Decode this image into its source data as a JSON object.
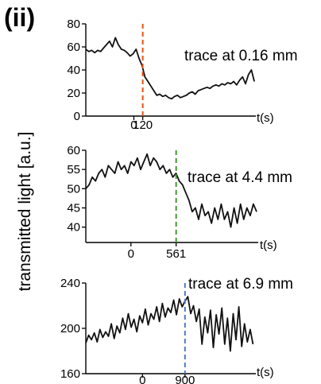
{
  "figure": {
    "panel_label": "(ii)",
    "shared_ylabel": "transmitted light [a.u.]"
  },
  "chart_data": [
    {
      "type": "line",
      "annotation": "trace at 0.16 mm",
      "xlabel": "t(s)",
      "ylim": [
        0,
        80
      ],
      "yticks": [
        0,
        20,
        40,
        60,
        80
      ],
      "xticks": [
        0,
        120
      ],
      "xlim": [
        -650,
        1650
      ],
      "marker": {
        "x": 120,
        "color": "#e2531a"
      },
      "series": [
        {
          "x": [
            -650,
            -610,
            -570,
            -530,
            -490,
            -450,
            -410,
            -370,
            -330,
            -290,
            -250,
            -210,
            -170,
            -130,
            -90,
            -50,
            -10,
            30,
            70,
            110,
            150,
            190,
            230,
            270,
            310,
            350,
            390,
            430,
            470,
            510,
            550,
            590,
            630,
            670,
            710,
            750,
            790,
            830,
            870,
            910,
            950,
            990,
            1030,
            1070,
            1110,
            1150,
            1190,
            1230,
            1270,
            1310,
            1350,
            1390,
            1430,
            1470,
            1510,
            1550,
            1590,
            1630
          ],
          "y": [
            58,
            56,
            57,
            55,
            57,
            56,
            59,
            62,
            65,
            60,
            68,
            62,
            58,
            57,
            55,
            52,
            54,
            58,
            50,
            44,
            34,
            30,
            26,
            22,
            18,
            19,
            17,
            18,
            16,
            15,
            17,
            18,
            16,
            17,
            18,
            20,
            21,
            19,
            22,
            23,
            24,
            25,
            24,
            26,
            27,
            26,
            28,
            27,
            29,
            28,
            30,
            27,
            31,
            34,
            28,
            36,
            40,
            30
          ]
        }
      ]
    },
    {
      "type": "line",
      "annotation": "trace at 4.4 mm",
      "xlabel": "t(s)",
      "ylim": [
        36,
        60
      ],
      "yticks": [
        40,
        45,
        50,
        55,
        60
      ],
      "xticks": [
        0,
        561
      ],
      "xlim": [
        -560,
        1580
      ],
      "marker": {
        "x": 561,
        "color": "#3e9a2b"
      },
      "series": [
        {
          "x": [
            -560,
            -520,
            -480,
            -440,
            -400,
            -360,
            -320,
            -280,
            -240,
            -200,
            -160,
            -120,
            -80,
            -40,
            0,
            40,
            80,
            120,
            160,
            200,
            240,
            280,
            320,
            360,
            400,
            440,
            480,
            520,
            560,
            600,
            640,
            680,
            720,
            760,
            800,
            840,
            880,
            920,
            960,
            1000,
            1040,
            1080,
            1120,
            1160,
            1200,
            1240,
            1280,
            1320,
            1360,
            1400,
            1440,
            1480,
            1520,
            1560
          ],
          "y": [
            50,
            51,
            53,
            52,
            54,
            55,
            53,
            56,
            55,
            54,
            57,
            55,
            56,
            54,
            57,
            56,
            58,
            55,
            57,
            59,
            56,
            58,
            57,
            55,
            56,
            54,
            55,
            53,
            54,
            52,
            51,
            49,
            47,
            44,
            45,
            42,
            46,
            43,
            44,
            41,
            45,
            42,
            46,
            42,
            44,
            40,
            45,
            41,
            46,
            42,
            45,
            43,
            46,
            44
          ]
        }
      ]
    },
    {
      "type": "line",
      "annotation": "trace at 6.9 mm",
      "xlabel": "t(s)",
      "ylim": [
        160,
        240
      ],
      "yticks": [
        160,
        200,
        240
      ],
      "xticks": [
        0,
        900
      ],
      "xlim": [
        -1200,
        2400
      ],
      "marker": {
        "x": 900,
        "color": "#4c7cc8"
      },
      "series": [
        {
          "x": [
            -1200,
            -1140,
            -1080,
            -1020,
            -960,
            -900,
            -840,
            -780,
            -720,
            -660,
            -600,
            -540,
            -480,
            -420,
            -360,
            -300,
            -240,
            -180,
            -120,
            -60,
            0,
            60,
            120,
            180,
            240,
            300,
            360,
            420,
            480,
            540,
            600,
            660,
            720,
            780,
            840,
            900,
            960,
            1020,
            1080,
            1140,
            1200,
            1260,
            1320,
            1380,
            1440,
            1500,
            1560,
            1620,
            1680,
            1740,
            1800,
            1860,
            1920,
            1980,
            2040,
            2100,
            2160,
            2220,
            2280,
            2340
          ],
          "y": [
            187,
            194,
            190,
            196,
            188,
            199,
            192,
            197,
            193,
            204,
            191,
            202,
            196,
            209,
            199,
            213,
            201,
            208,
            197,
            211,
            205,
            217,
            203,
            213,
            208,
            219,
            206,
            222,
            210,
            218,
            214,
            225,
            212,
            226,
            219,
            224,
            228,
            213,
            220,
            206,
            217,
            186,
            210,
            196,
            216,
            183,
            212,
            195,
            218,
            186,
            209,
            180,
            213,
            190,
            219,
            184,
            204,
            188,
            199,
            186
          ]
        }
      ]
    }
  ]
}
